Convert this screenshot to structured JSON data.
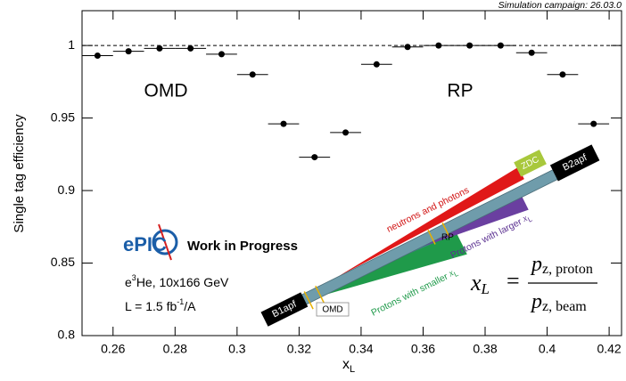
{
  "chart_data": {
    "type": "scatter",
    "title": "Simulation campaign: 26.03.0",
    "x_label": [
      "x",
      "L"
    ],
    "y_label": "Single tag efficiency",
    "xlim": [
      0.25,
      0.424
    ],
    "ylim": [
      0.8,
      1.024
    ],
    "xticks": [
      0.26,
      0.28,
      0.3,
      0.32,
      0.34,
      0.36,
      0.38,
      0.4,
      0.42
    ],
    "yticks": [
      0.8,
      0.85,
      0.9,
      0.95,
      1
    ],
    "reference_line": 1,
    "annotations": [
      "OMD",
      "RP"
    ],
    "series": [
      {
        "color": "#000000",
        "x": [
          0.255,
          0.265,
          0.275,
          0.285,
          0.295,
          0.305,
          0.315,
          0.325,
          0.335,
          0.345,
          0.355,
          0.365,
          0.375,
          0.385,
          0.395,
          0.405,
          0.415
        ],
        "values": [
          0.993,
          0.996,
          0.998,
          0.998,
          0.994,
          0.98,
          0.946,
          0.923,
          0.94,
          0.987,
          0.999,
          1.0,
          1.0,
          1.0,
          0.995,
          0.98,
          0.946
        ],
        "xerr": [
          0.005,
          0.005,
          0.005,
          0.005,
          0.005,
          0.005,
          0.005,
          0.005,
          0.005,
          0.005,
          0.005,
          0.005,
          0.005,
          0.005,
          0.005,
          0.005,
          0.005
        ]
      }
    ]
  },
  "logo": {
    "name": "ePIC",
    "status": "Work in Progress",
    "beam": [
      "e",
      "3",
      "He, 10x166 GeV"
    ],
    "lumi": [
      "L = 1.5 fb",
      "-1",
      "/A"
    ]
  },
  "diagram": {
    "neutrons": "neutrons and photons",
    "zdc": "ZDC",
    "b2apf": "B2apf",
    "larger": [
      "Protons with larger ",
      "x",
      "L"
    ],
    "rp": "RP",
    "smaller": [
      "Protons with smaller ",
      "x",
      "L"
    ],
    "b1apf": "B1apf",
    "omd": "OMD",
    "formula": {
      "lhs": [
        "x",
        "L"
      ],
      "eq": "=",
      "num": [
        "p",
        "z, proton"
      ],
      "den": [
        "p",
        "z, beam"
      ]
    }
  }
}
